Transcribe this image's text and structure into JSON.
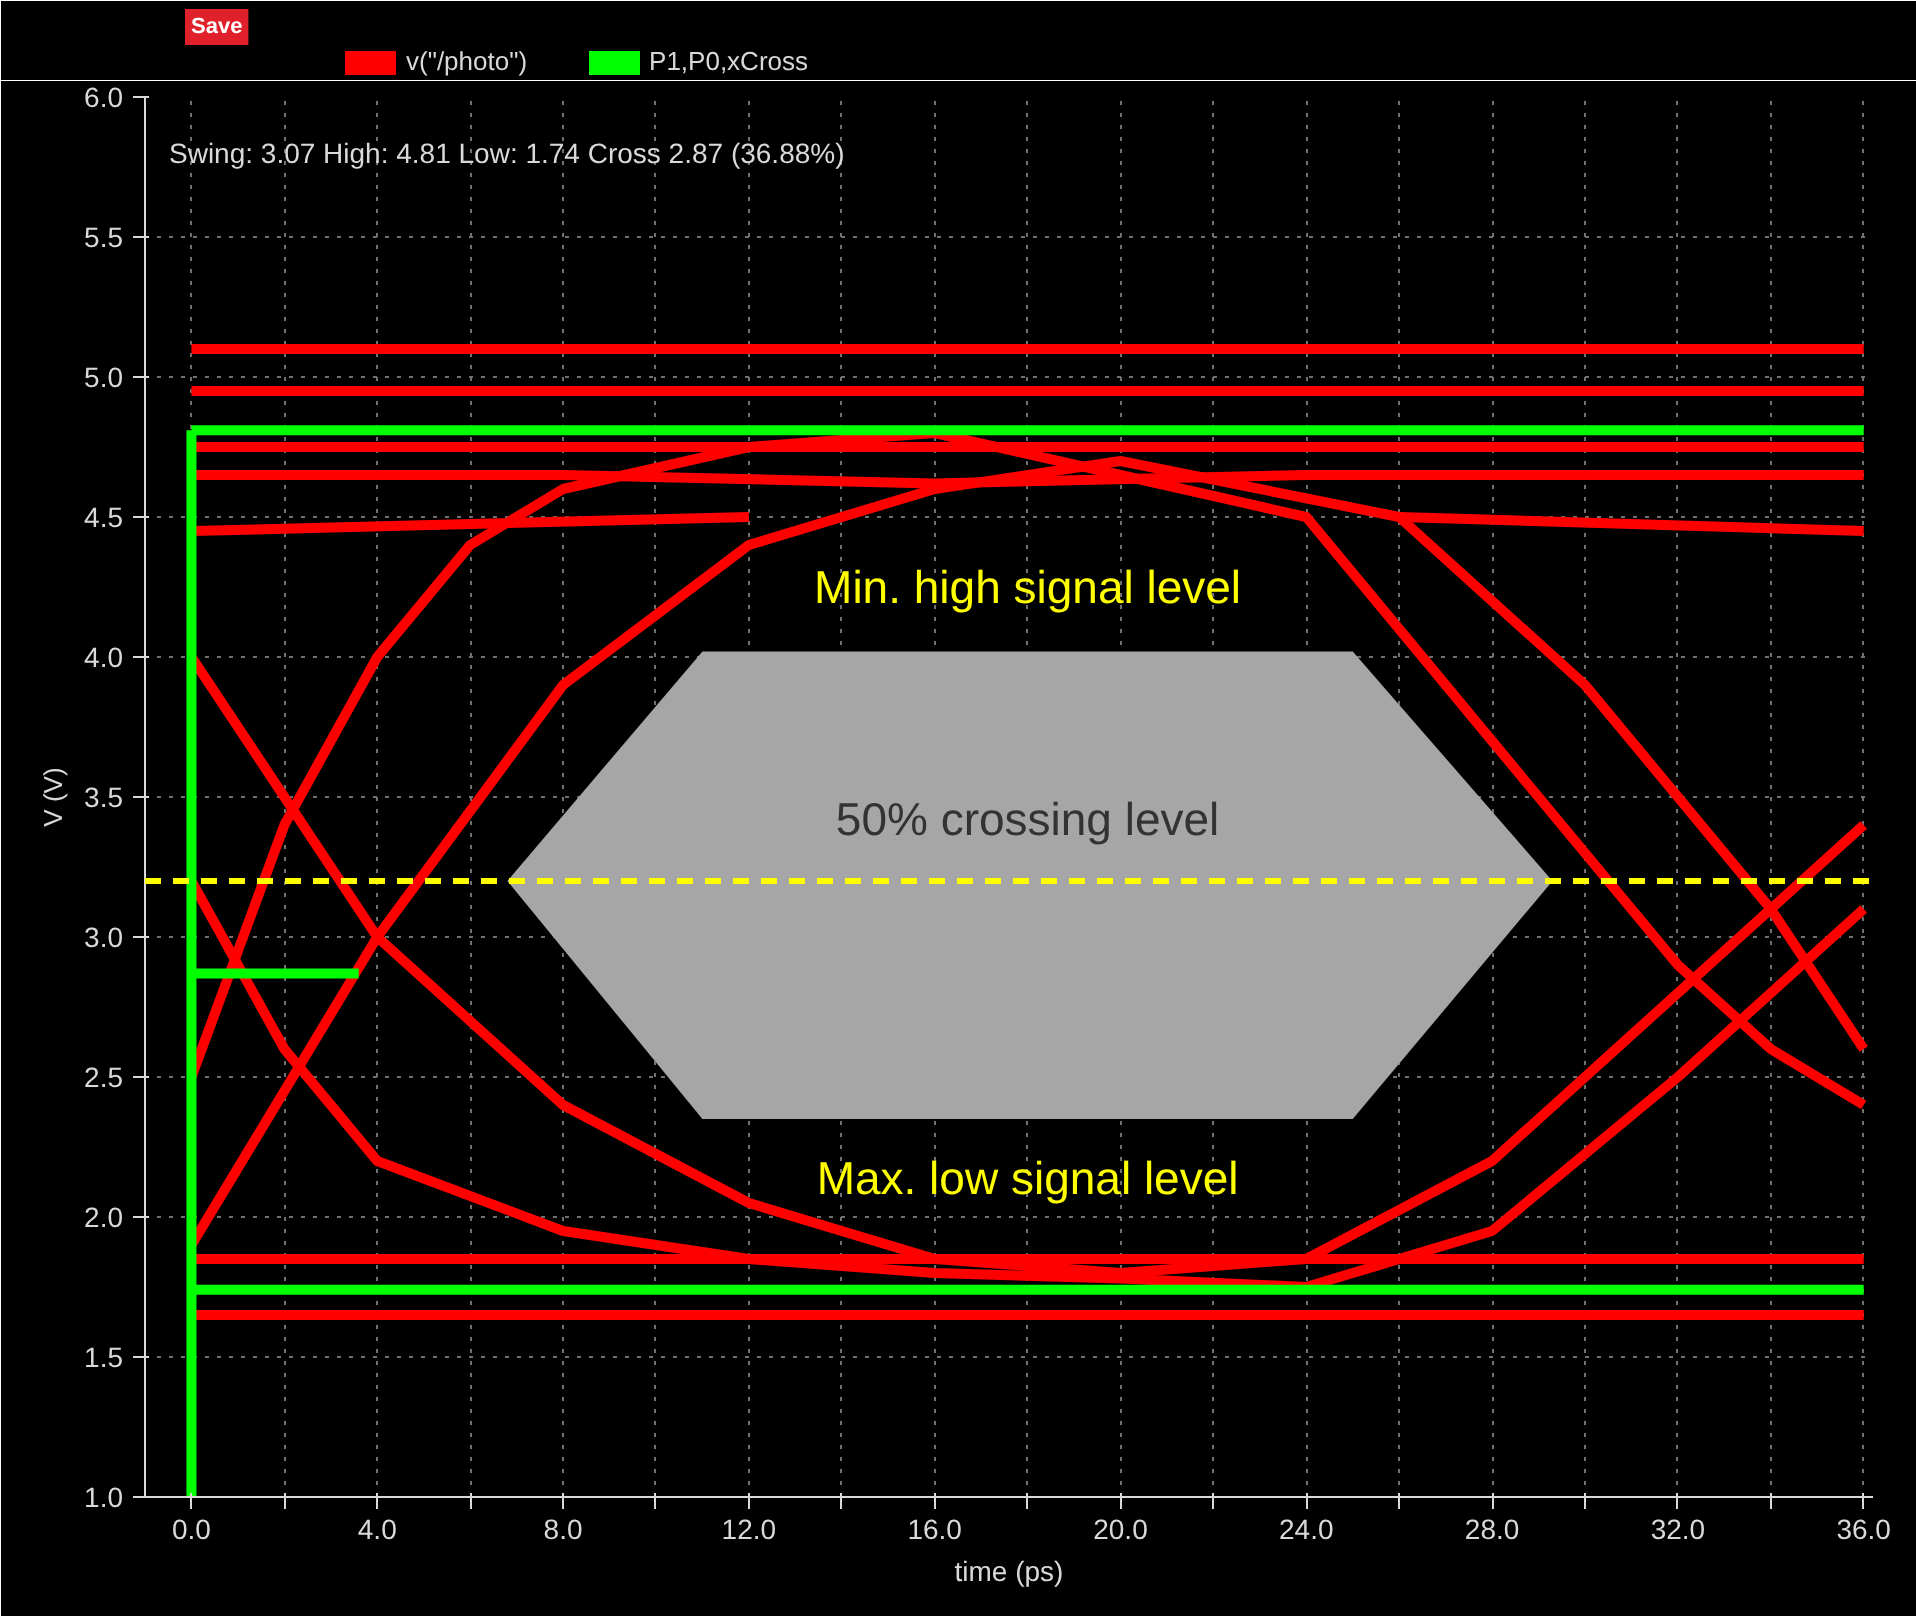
{
  "chart_data": {
    "type": "line",
    "xlabel": "time (ps)",
    "ylabel": "V (V)",
    "xlim": [
      -1,
      36.2
    ],
    "ylim": [
      1.0,
      6.0
    ],
    "xticks": [
      {
        "value": 0,
        "label": "0.0"
      },
      {
        "value": 2,
        "label": null
      },
      {
        "value": 4,
        "label": "4.0"
      },
      {
        "value": 6,
        "label": null
      },
      {
        "value": 8,
        "label": "8.0"
      },
      {
        "value": 10,
        "label": null
      },
      {
        "value": 12,
        "label": "12.0"
      },
      {
        "value": 14,
        "label": null
      },
      {
        "value": 16,
        "label": "16.0"
      },
      {
        "value": 18,
        "label": null
      },
      {
        "value": 20,
        "label": "20.0"
      },
      {
        "value": 22,
        "label": null
      },
      {
        "value": 24,
        "label": "24.0"
      },
      {
        "value": 26,
        "label": null
      },
      {
        "value": 28,
        "label": "28.0"
      },
      {
        "value": 30,
        "label": null
      },
      {
        "value": 32,
        "label": "32.0"
      },
      {
        "value": 34,
        "label": null
      },
      {
        "value": 36,
        "label": "36.0"
      }
    ],
    "yticks": [
      {
        "value": 1.0,
        "label": "1.0"
      },
      {
        "value": 1.5,
        "label": "1.5"
      },
      {
        "value": 2.0,
        "label": "2.0"
      },
      {
        "value": 2.5,
        "label": "2.5"
      },
      {
        "value": 3.0,
        "label": "3.0"
      },
      {
        "value": 3.5,
        "label": "3.5"
      },
      {
        "value": 4.0,
        "label": "4.0"
      },
      {
        "value": 4.5,
        "label": "4.5"
      },
      {
        "value": 5.0,
        "label": "5.0"
      },
      {
        "value": 5.5,
        "label": "5.5"
      },
      {
        "value": 6.0,
        "label": "6.0"
      }
    ],
    "grid": true,
    "legend": "top left",
    "line_style": "solid",
    "series": [
      {
        "name": "v(\"/photo\")",
        "color": "#ff0000",
        "x": [
          0,
          36
        ],
        "values": [
          5.1,
          5.1
        ]
      },
      {
        "color": "#ff0000",
        "x": [
          0,
          36
        ],
        "values": [
          4.95,
          4.95
        ]
      },
      {
        "color": "#ff0000",
        "x": [
          0,
          36
        ],
        "values": [
          4.75,
          4.75
        ]
      },
      {
        "color": "#ff0000",
        "x": [
          0,
          8,
          16,
          24,
          36
        ],
        "values": [
          4.65,
          4.65,
          4.62,
          4.65,
          4.65
        ]
      },
      {
        "color": "#ff0000",
        "x": [
          0,
          12
        ],
        "values": [
          4.45,
          4.5
        ]
      },
      {
        "color": "#ff0000",
        "x": [
          26,
          36
        ],
        "values": [
          4.5,
          4.45
        ]
      },
      {
        "color": "#ff0000",
        "x": [
          0,
          36
        ],
        "values": [
          1.85,
          1.85
        ]
      },
      {
        "color": "#ff0000",
        "x": [
          0,
          36
        ],
        "values": [
          1.65,
          1.65
        ]
      },
      {
        "color": "#ff0000",
        "x": [
          0,
          2,
          4,
          6,
          8,
          12,
          16,
          20,
          24,
          28,
          32,
          34,
          36
        ],
        "values": [
          2.5,
          3.4,
          4.0,
          4.4,
          4.6,
          4.75,
          4.8,
          4.65,
          4.5,
          3.7,
          2.9,
          2.6,
          2.4
        ]
      },
      {
        "color": "#ff0000",
        "x": [
          0,
          4,
          8,
          12,
          16,
          20,
          26,
          30,
          34,
          36
        ],
        "values": [
          1.9,
          3.0,
          3.9,
          4.4,
          4.6,
          4.7,
          4.5,
          3.9,
          3.1,
          2.6
        ]
      },
      {
        "color": "#ff0000",
        "x": [
          0,
          2,
          4,
          8,
          12,
          16,
          20,
          24,
          28,
          32,
          36
        ],
        "values": [
          3.2,
          2.6,
          2.2,
          1.95,
          1.85,
          1.8,
          1.78,
          1.75,
          1.95,
          2.5,
          3.1
        ]
      },
      {
        "color": "#ff0000",
        "x": [
          0,
          4,
          8,
          12,
          16,
          20,
          24,
          28,
          32,
          34,
          36
        ],
        "values": [
          4.0,
          3.0,
          2.4,
          2.05,
          1.85,
          1.8,
          1.85,
          2.2,
          2.8,
          3.1,
          3.4
        ]
      },
      {
        "name": "P1,P0,xCross",
        "color": "#00ff00",
        "x": [
          0,
          36
        ],
        "values": [
          4.81,
          4.81
        ]
      },
      {
        "color": "#00ff00",
        "x": [
          0,
          36
        ],
        "values": [
          1.74,
          1.74
        ]
      },
      {
        "color": "#00ff00",
        "x": [
          0,
          0
        ],
        "values": [
          1.0,
          4.81
        ]
      },
      {
        "color": "#00ff00",
        "x": [
          0,
          3.6
        ],
        "values": [
          2.87,
          2.87
        ]
      },
      {
        "type": "area",
        "color": "#a6a6a6",
        "x": [
          6.8,
          11,
          25,
          29.3,
          25,
          11
        ],
        "values": [
          3.2,
          4.02,
          4.02,
          3.2,
          2.35,
          2.35
        ]
      }
    ],
    "ref_lines": [
      {
        "axis": "y",
        "value": 3.2,
        "label": null,
        "color": "#ffff00",
        "line_style": "dashed"
      }
    ],
    "annotations": [
      "Save",
      "Swing: 3.07 High: 4.81 Low: 1.74 Cross 2.87 (36.88%)",
      "Min. high signal level",
      "50% crossing level",
      "Max. low signal level"
    ]
  }
}
